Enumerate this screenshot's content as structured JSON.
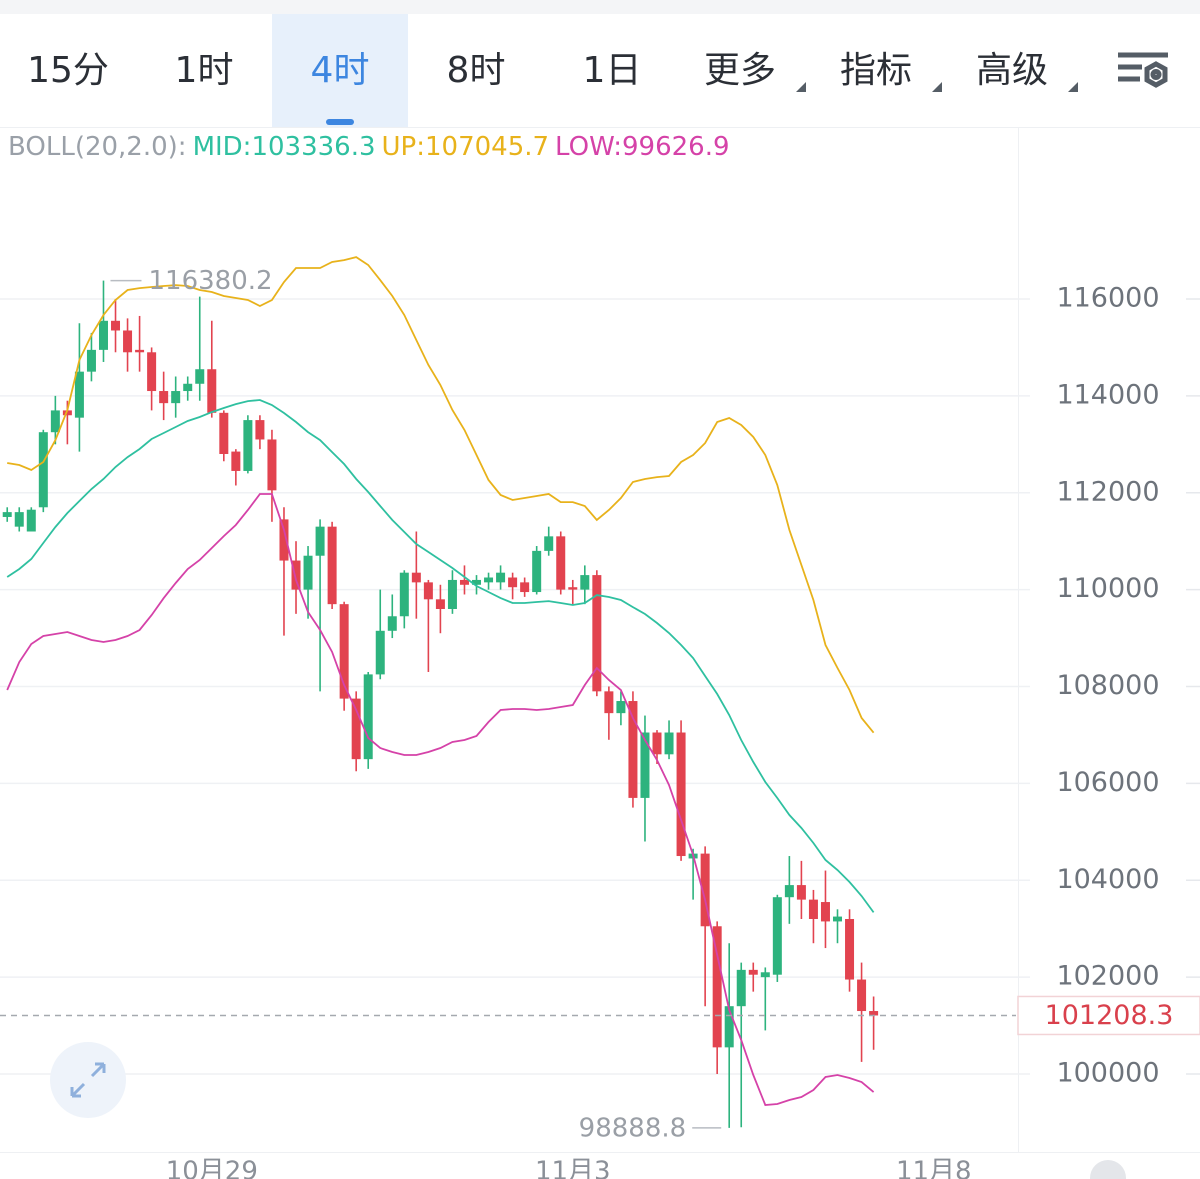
{
  "tabs": {
    "items": [
      {
        "label": "15分"
      },
      {
        "label": "1时"
      },
      {
        "label": "4时"
      },
      {
        "label": "8时"
      },
      {
        "label": "1日"
      },
      {
        "label": "更多",
        "menu": true
      },
      {
        "label": "指标",
        "menu": true
      },
      {
        "label": "高级",
        "menu": true
      }
    ],
    "active": 2
  },
  "chart_data": {
    "type": "candlestick",
    "indicator": "BOLL(20,2.0):",
    "xlim": [
      -0.6,
      84
    ],
    "xticks": [
      {
        "value": 17,
        "label": "10月29"
      },
      {
        "value": 47,
        "label": "11月3"
      },
      {
        "value": 77,
        "label": "11月8"
      }
    ],
    "ylim": [
      98400,
      119500
    ],
    "yticks": [
      100000,
      102000,
      104000,
      106000,
      108000,
      110000,
      112000,
      114000,
      116000
    ],
    "grid": true,
    "candles": {
      "up_color": "#2db37e",
      "down_color": "#e2434f",
      "open": [
        111500,
        111300,
        111200,
        111700,
        113250,
        113700,
        113550,
        114500,
        114950,
        115550,
        115350,
        114950,
        114900,
        114100,
        113850,
        114100,
        114250,
        114550,
        113650,
        112850,
        112450,
        113500,
        113100,
        111450,
        110600,
        110000,
        110700,
        111300,
        109700,
        107750,
        106500,
        108250,
        109150,
        109450,
        110350,
        110150,
        109800,
        109600,
        110200,
        110100,
        110150,
        110150,
        110250,
        110150,
        109950,
        110800,
        111100,
        110050,
        110000,
        110300,
        107900,
        107450,
        107700,
        105700,
        107050,
        106600,
        107050,
        104450,
        104550,
        103050,
        100550,
        101400,
        102150,
        102000,
        102050,
        103650,
        103900,
        103600,
        103550,
        103150,
        103200,
        101950,
        101300
      ],
      "high": [
        111700,
        111700,
        111700,
        113300,
        114000,
        113900,
        115500,
        115300,
        116380.2,
        116000,
        115600,
        115650,
        115000,
        114500,
        114400,
        114400,
        116050,
        115550,
        113700,
        112900,
        113600,
        113600,
        113300,
        111700,
        111000,
        110900,
        111450,
        111400,
        109750,
        107900,
        108300,
        110000,
        109900,
        110400,
        111200,
        110200,
        110100,
        110400,
        110500,
        110300,
        110350,
        110500,
        110350,
        110250,
        110900,
        111300,
        111200,
        110200,
        110500,
        110400,
        108000,
        107900,
        107900,
        107400,
        107100,
        107300,
        107300,
        104650,
        104700,
        103150,
        102700,
        102300,
        102300,
        102200,
        103700,
        104500,
        104400,
        103800,
        104200,
        103400,
        103400,
        102300,
        101600
      ],
      "low": [
        111400,
        111200,
        111200,
        111600,
        113000,
        113000,
        112850,
        114300,
        114700,
        114900,
        114500,
        114500,
        113700,
        113500,
        113550,
        113900,
        113900,
        113550,
        112650,
        112150,
        112400,
        112900,
        111400,
        109050,
        109500,
        109400,
        107900,
        109600,
        107500,
        106250,
        106300,
        108150,
        109000,
        109200,
        109400,
        108300,
        109100,
        109500,
        109900,
        109900,
        110000,
        110000,
        109800,
        109850,
        109900,
        110700,
        109900,
        109700,
        109700,
        107800,
        106900,
        107200,
        105500,
        104800,
        106400,
        106500,
        104400,
        103600,
        101400,
        100000,
        98888.8,
        98900,
        101700,
        100900,
        101900,
        103100,
        103200,
        102700,
        102600,
        102700,
        101700,
        100250,
        100500
      ],
      "close": [
        111600,
        111600,
        111650,
        113250,
        113700,
        113600,
        114500,
        114950,
        115550,
        115350,
        114900,
        114900,
        114100,
        113850,
        114100,
        114250,
        114550,
        113650,
        112800,
        112450,
        113500,
        113100,
        112050,
        110600,
        110000,
        110700,
        111300,
        109700,
        107750,
        106500,
        108250,
        109150,
        109450,
        110350,
        110150,
        109800,
        109600,
        110200,
        110100,
        110200,
        110250,
        110350,
        110050,
        109950,
        110800,
        111100,
        110000,
        110000,
        110300,
        107900,
        107450,
        107700,
        105700,
        107050,
        106600,
        107050,
        104500,
        104550,
        103050,
        100550,
        101400,
        102150,
        102050,
        102100,
        103650,
        103900,
        103600,
        103200,
        103150,
        103250,
        101950,
        101300,
        101208.3
      ]
    },
    "series": [
      {
        "name": "MID:",
        "color": "#2fc0a0",
        "values": [
          110260,
          110425,
          110632,
          110962,
          111292,
          111581,
          111829,
          112077,
          112283,
          112531,
          112737,
          112903,
          113109,
          113233,
          113357,
          113481,
          113563,
          113666,
          113749,
          113831,
          113893,
          113914,
          113811,
          113646,
          113460,
          113253,
          113088,
          112840,
          112593,
          112283,
          112015,
          111726,
          111437,
          111189,
          110941,
          110776,
          110611,
          110446,
          110260,
          110074,
          109950,
          109826,
          109723,
          109723,
          109744,
          109764,
          109723,
          109682,
          109723,
          109888,
          109847,
          109785,
          109640,
          109496,
          109310,
          109104,
          108856,
          108588,
          108216,
          107845,
          107411,
          106895,
          106441,
          106028,
          105698,
          105347,
          105078,
          104769,
          104418,
          104211,
          103964,
          103675,
          103336.3
        ]
      },
      {
        "name": "UP:",
        "color": "#e8b21b",
        "values": [
          112614,
          112572,
          112469,
          112634,
          113088,
          113708,
          114740,
          115256,
          115669,
          115979,
          116185,
          116226,
          116247,
          116268,
          116288,
          116268,
          116185,
          116144,
          116061,
          116020,
          115979,
          115855,
          115979,
          116350,
          116639,
          116639,
          116639,
          116763,
          116804,
          116866,
          116701,
          116391,
          116061,
          115669,
          115153,
          114637,
          114224,
          113708,
          113295,
          112779,
          112263,
          111953,
          111850,
          111891,
          111932,
          111974,
          111808,
          111808,
          111726,
          111437,
          111643,
          111891,
          112221,
          112283,
          112324,
          112345,
          112634,
          112779,
          113026,
          113460,
          113543,
          113398,
          113150,
          112779,
          112159,
          111230,
          110508,
          109785,
          108856,
          108381,
          107927,
          107349,
          107045.7
        ]
      },
      {
        "name": "LOW:",
        "color": "#d542a8",
        "values": [
          107927,
          108505,
          108877,
          109042,
          109083,
          109125,
          109042,
          108960,
          108918,
          108960,
          109042,
          109166,
          109475,
          109826,
          110136,
          110425,
          110611,
          110859,
          111106,
          111334,
          111643,
          111974,
          111974,
          111230,
          110198,
          109538,
          109166,
          108712,
          108031,
          107514,
          106936,
          106730,
          106647,
          106585,
          106585,
          106647,
          106730,
          106854,
          106895,
          106978,
          107267,
          107514,
          107535,
          107535,
          107514,
          107535,
          107576,
          107618,
          108031,
          108381,
          108134,
          107927,
          107349,
          106895,
          106482,
          105966,
          105244,
          104521,
          103592,
          102457,
          101321,
          100702,
          99979,
          99360,
          99381,
          99463,
          99525,
          99670,
          99938,
          99979,
          99917,
          99835,
          99626.9
        ]
      }
    ]
  }
}
